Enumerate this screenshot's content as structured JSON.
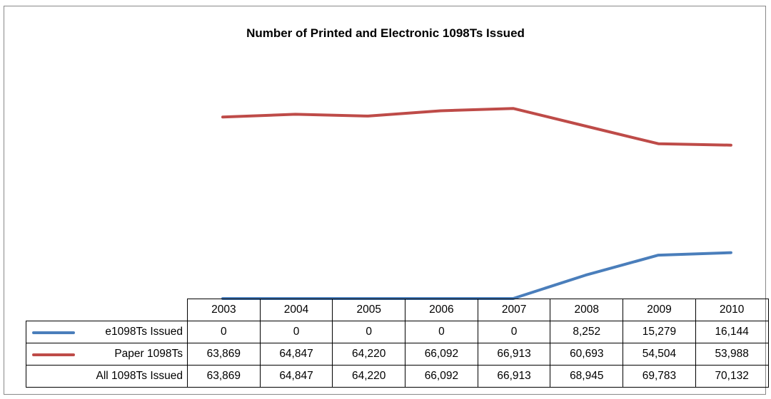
{
  "chart_data": {
    "type": "line",
    "title": "Number of Printed and Electronic 1098Ts Issued",
    "categories": [
      "2003",
      "2004",
      "2005",
      "2006",
      "2007",
      "2008",
      "2009",
      "2010"
    ],
    "series": [
      {
        "name": "e1098Ts Issued",
        "color": "#4a7ebb",
        "plotted": true,
        "values": [
          0,
          0,
          0,
          0,
          0,
          8252,
          15279,
          16144
        ],
        "labels": [
          "0",
          "0",
          "0",
          "0",
          "0",
          "8,252",
          "15,279",
          "16,144"
        ]
      },
      {
        "name": "Paper 1098Ts",
        "color": "#be4b48",
        "plotted": true,
        "values": [
          63869,
          64847,
          64220,
          66092,
          66913,
          60693,
          54504,
          53988
        ],
        "labels": [
          "63,869",
          "64,847",
          "64,220",
          "66,092",
          "66,913",
          "60,693",
          "54,504",
          "53,988"
        ]
      },
      {
        "name": "All 1098Ts Issued",
        "plotted": false,
        "values": [
          63869,
          64847,
          64220,
          66092,
          66913,
          68945,
          69783,
          70132
        ],
        "labels": [
          "63,869",
          "64,847",
          "64,220",
          "66,092",
          "66,913",
          "68,945",
          "69,783",
          "70,132"
        ]
      }
    ],
    "ylim": [
      0,
      80000
    ],
    "grid": false,
    "legend": "data table below plot"
  }
}
